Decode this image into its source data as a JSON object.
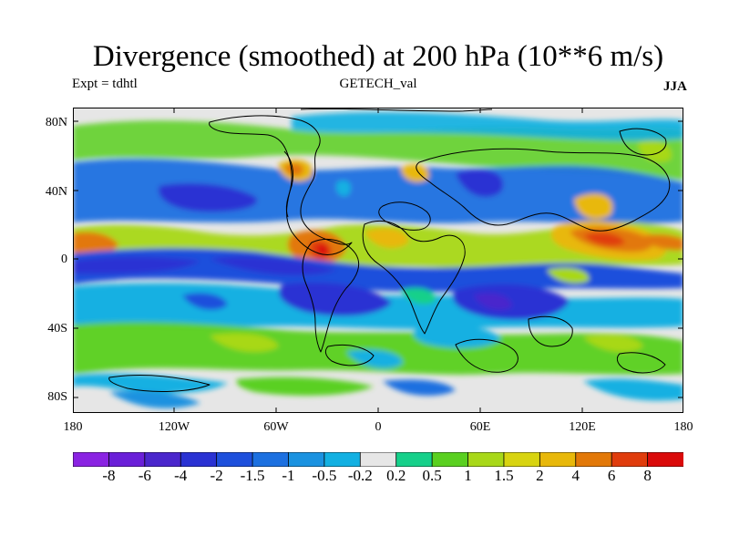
{
  "title": "Divergence (smoothed) at 200 hPa (10**6 m/s)",
  "expt": "Expt = tdhtl",
  "dataset": "GETECH_val",
  "season": "JJA",
  "lat_labels": [
    "80N",
    "40N",
    "0",
    "40S",
    "80S"
  ],
  "lon_labels": [
    "180",
    "120W",
    "60W",
    "0",
    "60E",
    "120E",
    "180"
  ],
  "colorbar": {
    "labels": [
      "-8",
      "-6",
      "-4",
      "-2",
      "-1.5",
      "-1",
      "-0.5",
      "-0.2",
      "0.2",
      "0.5",
      "1",
      "1.5",
      "2",
      "4",
      "6",
      "8"
    ],
    "colors": [
      "#8a23e2",
      "#6a1fd8",
      "#4a26cc",
      "#2a32d3",
      "#1e50dc",
      "#1c70e0",
      "#1a92e0",
      "#12b0e2",
      "#e6e6e6",
      "#16d08a",
      "#5ad020",
      "#a8d818",
      "#d8d410",
      "#e8b80a",
      "#e27808",
      "#e03c0c",
      "#da0a0a"
    ]
  }
}
